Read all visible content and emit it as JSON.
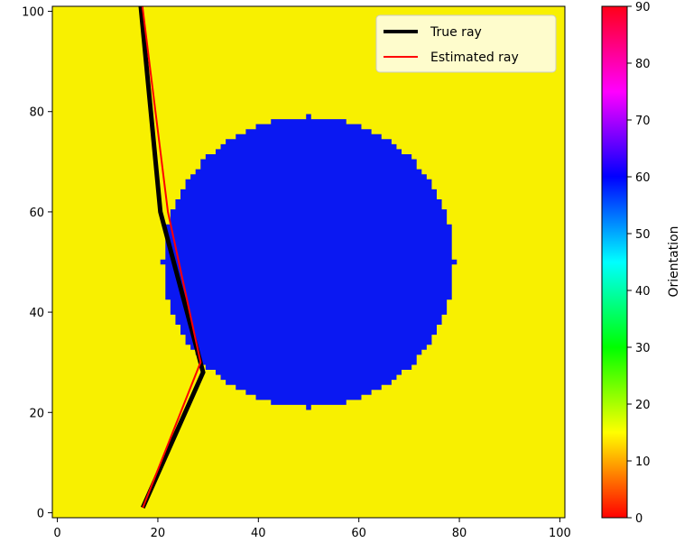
{
  "chart_data": [
    {
      "type": "heatmap",
      "title": "",
      "xlabel": "",
      "ylabel": "",
      "xlim": [
        -1,
        101
      ],
      "ylim": [
        -1,
        101
      ],
      "xticks": [
        0,
        20,
        40,
        60,
        80,
        100
      ],
      "yticks": [
        0,
        20,
        40,
        60,
        80,
        100
      ],
      "background_value": 15,
      "background_color": "#f8f000",
      "region": {
        "shape": "disk",
        "center": [
          50,
          50
        ],
        "radius": 29,
        "value": 60,
        "color": "#0a18f2"
      },
      "series": [
        {
          "name": "True ray",
          "color": "#000000",
          "x": [
            17,
            29,
            20.5,
            16.5
          ],
          "y": [
            1,
            28,
            60,
            102
          ]
        },
        {
          "name": "Estimated ray",
          "color": "#ff0000",
          "x": [
            17,
            28.5,
            22,
            16.8
          ],
          "y": [
            1,
            30,
            60,
            102
          ]
        }
      ],
      "legend": {
        "placement": "top-right",
        "entries": [
          "True ray",
          "Estimated ray"
        ]
      }
    },
    {
      "type": "colorbar",
      "label": "Orientation",
      "range": [
        0,
        90
      ],
      "ticks": [
        0,
        10,
        20,
        30,
        40,
        50,
        60,
        70,
        80,
        90
      ],
      "colormap": "hsv"
    }
  ]
}
